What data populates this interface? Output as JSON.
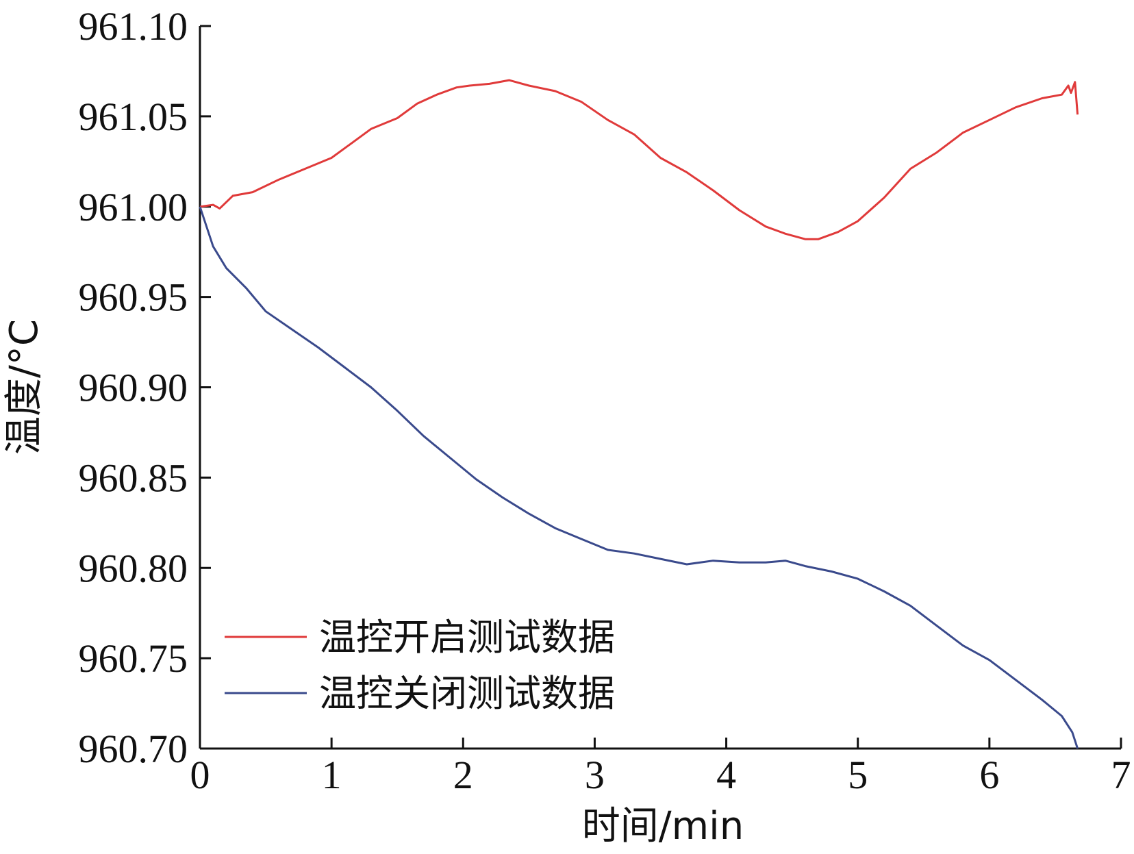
{
  "chart_data": {
    "type": "line",
    "xlabel": "时间/min",
    "ylabel": "温度/°C",
    "xlim": [
      0,
      7
    ],
    "ylim": [
      960.7,
      961.1
    ],
    "xticks": [
      0,
      1,
      2,
      3,
      4,
      5,
      6,
      7
    ],
    "yticks": [
      960.7,
      960.75,
      960.8,
      960.85,
      960.9,
      960.95,
      961.0,
      961.05,
      961.1
    ],
    "xtick_labels": [
      "0",
      "1",
      "2",
      "3",
      "4",
      "5",
      "6",
      "7"
    ],
    "ytick_labels": [
      "960.70",
      "960.75",
      "960.80",
      "960.85",
      "960.90",
      "960.95",
      "961.00",
      "961.05",
      "961.10"
    ],
    "grid": false,
    "legend_position": "bottom-left",
    "series": [
      {
        "name": "温控开启测试数据",
        "color": "#e03a3a",
        "x": [
          0,
          0.1,
          0.15,
          0.25,
          0.4,
          0.6,
          0.8,
          1.0,
          1.15,
          1.3,
          1.5,
          1.65,
          1.8,
          1.95,
          2.05,
          2.2,
          2.35,
          2.5,
          2.7,
          2.9,
          3.1,
          3.3,
          3.5,
          3.7,
          3.9,
          4.1,
          4.3,
          4.45,
          4.6,
          4.7,
          4.85,
          5.0,
          5.2,
          5.4,
          5.6,
          5.8,
          6.0,
          6.2,
          6.4,
          6.55,
          6.6,
          6.62,
          6.65,
          6.67
        ],
        "y": [
          961.0,
          961.001,
          960.999,
          961.006,
          961.008,
          961.015,
          961.021,
          961.027,
          961.035,
          961.043,
          961.049,
          961.057,
          961.062,
          961.066,
          961.067,
          961.068,
          961.07,
          961.067,
          961.064,
          961.058,
          961.048,
          961.04,
          961.027,
          961.019,
          961.009,
          960.998,
          960.989,
          960.985,
          960.982,
          960.982,
          960.986,
          960.992,
          961.005,
          961.021,
          961.03,
          961.041,
          961.048,
          961.055,
          961.06,
          961.062,
          961.067,
          961.063,
          961.069,
          961.051
        ]
      },
      {
        "name": "温控关闭测试数据",
        "color": "#3a4a8c",
        "x": [
          0,
          0.1,
          0.2,
          0.35,
          0.5,
          0.7,
          0.9,
          1.1,
          1.3,
          1.5,
          1.7,
          1.9,
          2.1,
          2.3,
          2.5,
          2.7,
          2.9,
          3.1,
          3.3,
          3.5,
          3.7,
          3.9,
          4.1,
          4.3,
          4.45,
          4.6,
          4.8,
          5.0,
          5.2,
          5.4,
          5.6,
          5.8,
          6.0,
          6.2,
          6.4,
          6.55,
          6.63,
          6.67
        ],
        "y": [
          961.0,
          960.978,
          960.966,
          960.955,
          960.942,
          960.932,
          960.922,
          960.911,
          960.9,
          960.887,
          960.873,
          960.861,
          960.849,
          960.839,
          960.83,
          960.822,
          960.816,
          960.81,
          960.808,
          960.805,
          960.802,
          960.804,
          960.803,
          960.803,
          960.804,
          960.801,
          960.798,
          960.794,
          960.787,
          960.779,
          960.768,
          960.757,
          960.749,
          960.738,
          960.727,
          960.718,
          960.709,
          960.7
        ]
      }
    ]
  }
}
